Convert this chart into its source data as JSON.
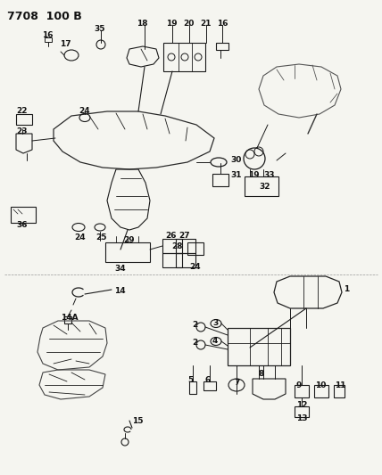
{
  "title": "7708  100 B",
  "bg_color": "#f5f5f0",
  "line_color": "#1a1a1a",
  "title_fontsize": 9,
  "label_fontsize": 6.5,
  "figsize": [
    4.28,
    5.33
  ],
  "dpi": 100,
  "gray": "#888888",
  "light_gray": "#cccccc"
}
